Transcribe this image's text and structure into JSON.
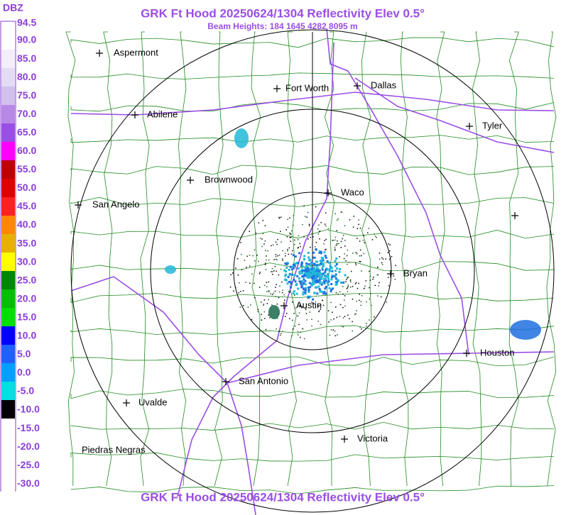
{
  "header": {
    "title": "GRK Ft Hood 20250624/1304 Reflectivity Elev 0.5°",
    "subtitle": "Beam Heights: 184 1645 4282 8095 m"
  },
  "footer": {
    "title": "GRK Ft Hood 20250624/1304 Reflectivity Elev 0.5°"
  },
  "legend": {
    "title": "DBZ",
    "labels": [
      "94.5",
      "90.0",
      "85.0",
      "80.0",
      "75.0",
      "70.0",
      "65.0",
      "60.0",
      "55.0",
      "50.0",
      "45.0",
      "40.0",
      "35.0",
      "30.0",
      "25.0",
      "20.0",
      "15.0",
      "10.0",
      "5.0",
      "0.0",
      "-5.0",
      "-10.0",
      "-15.0",
      "-20.0",
      "-25.0",
      "-30.0"
    ]
  },
  "cities": [
    {
      "name": "Aspermont"
    },
    {
      "name": "Fort Worth"
    },
    {
      "name": "Dallas"
    },
    {
      "name": "Abilene"
    },
    {
      "name": "Tyler"
    },
    {
      "name": "Brownwood"
    },
    {
      "name": "Waco"
    },
    {
      "name": "San Angelo"
    },
    {
      "name": "Bryan"
    },
    {
      "name": "Austin"
    },
    {
      "name": "Houston"
    },
    {
      "name": "San Antonio"
    },
    {
      "name": "Uvalde"
    },
    {
      "name": "Piedras Negras"
    },
    {
      "name": "Victoria"
    }
  ]
}
